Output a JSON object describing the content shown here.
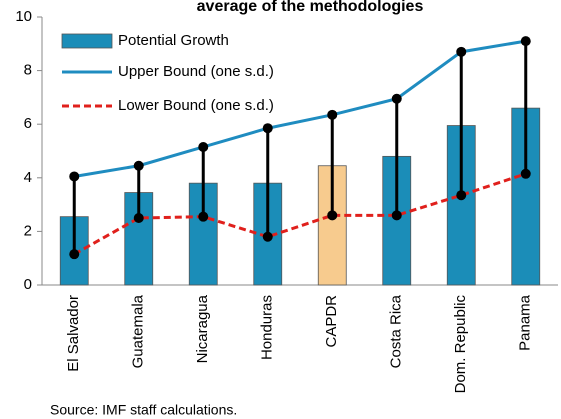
{
  "chart_data": {
    "type": "bar_range",
    "title": "average of  the methodologies",
    "note": "Source: IMF staff calculations.",
    "categories": [
      "El Salvador",
      "Guatemala",
      "Nicaragua",
      "Honduras",
      "CAPDR",
      "Costa Rica",
      "Dom. Republic",
      "Panama"
    ],
    "series": [
      {
        "name": "Potential Growth",
        "color": "#1b8db8",
        "colors": [
          "#1b8db8",
          "#1b8db8",
          "#1b8db8",
          "#1b8db8",
          "#f7cb8e",
          "#1b8db8",
          "#1b8db8",
          "#1b8db8"
        ],
        "values": [
          2.55,
          3.45,
          3.8,
          3.8,
          4.45,
          4.8,
          5.95,
          6.6
        ]
      },
      {
        "name": "Upper Bound (one s.d.)",
        "color": "#1f8cc0",
        "values": [
          4.05,
          4.45,
          5.15,
          5.85,
          6.35,
          6.95,
          8.7,
          9.1
        ]
      },
      {
        "name": "Lower Bound (one s.d.)",
        "color": "#e0201c",
        "values": [
          1.15,
          2.5,
          2.55,
          1.8,
          2.6,
          2.6,
          3.35,
          4.15
        ]
      }
    ],
    "ylim": [
      0,
      10
    ],
    "yticks": [
      0,
      2,
      4,
      6,
      8,
      10
    ],
    "grid": false
  }
}
